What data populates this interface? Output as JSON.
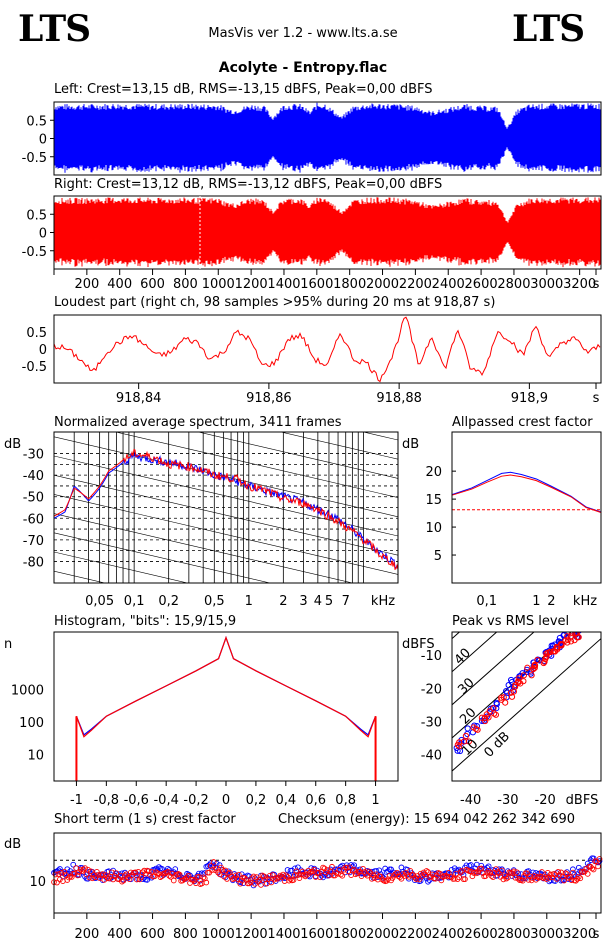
{
  "header": {
    "logo_left": "LTS",
    "logo_right": "LTS",
    "app_title": "MasVis ver 1.2 - www.lts.a.se",
    "file_title": "Acolyte - Entropy.flac"
  },
  "colors": {
    "left": "#0000ff",
    "right": "#ff0000"
  },
  "panels": {
    "left": "Left: Crest=13,15 dB, RMS=-13,15 dBFS, Peak=0,00 dBFS",
    "right": "Right: Crest=13,12 dB, RMS=-13,12 dBFS, Peak=0,00 dBFS",
    "loudest": "Loudest part (right ch, 98 samples >95% during 20 ms at 918,87 s)",
    "spectrum": "Normalized average spectrum, 3411 frames",
    "allpass": "Allpassed crest factor",
    "histogram": "Histogram, \"bits\": 15,9/15,9",
    "peakrms": "Peak vs RMS level",
    "shortcrest": "Short term (1 s) crest factor",
    "checksum": "Checksum (energy):  15 694 042 262 342 690"
  },
  "chart_data": [
    {
      "type": "area",
      "name": "left-waveform",
      "title": "Left: Crest=13,15 dB, RMS=-13,15 dBFS, Peak=0,00 dBFS",
      "ylim": [
        -1,
        1
      ],
      "ytick_labels": [
        "0.5",
        "0",
        "-0.5"
      ],
      "envelope_x": [
        0,
        200,
        400,
        600,
        800,
        900,
        1000,
        1050,
        1100,
        1150,
        1200,
        1280,
        1330,
        1400,
        1500,
        1560,
        1600,
        1650,
        1750,
        1820,
        1900,
        2000,
        2100,
        2200,
        2300,
        2400,
        2500,
        2600,
        2700,
        2760,
        2820,
        2900,
        3000,
        3100,
        3200,
        3300
      ],
      "envelope_y": [
        0.95,
        0.95,
        0.97,
        0.95,
        0.96,
        0.95,
        0.95,
        0.85,
        0.8,
        0.88,
        0.95,
        0.9,
        0.6,
        0.95,
        0.95,
        0.75,
        0.98,
        0.98,
        0.6,
        0.9,
        0.96,
        0.97,
        0.95,
        0.9,
        0.75,
        0.85,
        0.95,
        0.9,
        0.88,
        0.3,
        0.8,
        0.95,
        0.96,
        0.96,
        0.97,
        0.97
      ]
    },
    {
      "type": "area",
      "name": "right-waveform",
      "title": "Right: Crest=13,12 dB, RMS=-13,12 dBFS, Peak=0,00 dBFS",
      "ylim": [
        -1,
        1
      ],
      "ytick_labels": [
        "0.5",
        "0",
        "-0.5"
      ],
      "x_tick_labels": [
        "200",
        "400",
        "600",
        "800",
        "1000",
        "1200",
        "1400",
        "1600",
        "1800",
        "2000",
        "2200",
        "2400",
        "2600",
        "2800",
        "3000",
        "3200",
        "s"
      ],
      "envelope_x": [
        0,
        200,
        400,
        600,
        800,
        900,
        1000,
        1050,
        1100,
        1150,
        1200,
        1280,
        1330,
        1400,
        1500,
        1560,
        1600,
        1650,
        1750,
        1820,
        1900,
        2000,
        2100,
        2200,
        2300,
        2400,
        2500,
        2600,
        2700,
        2760,
        2820,
        2900,
        3000,
        3100,
        3200,
        3300
      ],
      "envelope_y": [
        0.95,
        0.95,
        0.97,
        0.95,
        0.96,
        0.95,
        0.95,
        0.85,
        0.8,
        0.88,
        0.95,
        0.9,
        0.6,
        0.95,
        0.95,
        0.75,
        0.98,
        0.98,
        0.6,
        0.9,
        0.96,
        0.97,
        0.95,
        0.9,
        0.75,
        0.85,
        0.95,
        0.9,
        0.88,
        0.3,
        0.8,
        0.95,
        0.96,
        0.96,
        0.97,
        0.97
      ]
    },
    {
      "type": "line",
      "name": "loudest-part",
      "title": "Loudest part (right ch, 98 samples >95% during 20 ms at 918,87 s)",
      "x_tick_labels": [
        "918,84",
        "918,86",
        "918,88",
        "918,9",
        "s"
      ],
      "xlim": [
        918.827,
        918.911
      ],
      "ylim": [
        -1,
        1
      ],
      "ytick_labels": [
        "0.5",
        "0",
        "-0.5"
      ],
      "x": [
        918.827,
        918.829,
        918.831,
        918.833,
        918.835,
        918.837,
        918.839,
        918.841,
        918.843,
        918.845,
        918.847,
        918.849,
        918.851,
        918.853,
        918.855,
        918.857,
        918.859,
        918.861,
        918.863,
        918.865,
        918.867,
        918.869,
        918.871,
        918.873,
        918.875,
        918.877,
        918.879,
        918.881,
        918.883,
        918.885,
        918.887,
        918.889,
        918.891,
        918.893,
        918.895,
        918.897,
        918.899,
        918.901,
        918.903,
        918.905,
        918.907,
        918.909,
        918.911
      ],
      "y": [
        0.1,
        0.0,
        -0.3,
        -0.7,
        -0.1,
        0.2,
        0.4,
        0.1,
        -0.2,
        -0.1,
        0.3,
        0.2,
        -0.3,
        -0.1,
        0.5,
        0.3,
        -0.5,
        -0.4,
        0.3,
        0.4,
        -0.3,
        -0.5,
        0.5,
        -0.3,
        -0.4,
        -0.9,
        -0.2,
        1.0,
        -0.5,
        0.4,
        -0.6,
        0.6,
        -0.6,
        -0.7,
        0.5,
        0.3,
        -0.2,
        0.7,
        -0.3,
        0.2,
        0.3,
        -0.1,
        0.1
      ]
    },
    {
      "type": "line",
      "name": "spectrum",
      "title": "Normalized average spectrum, 3411 frames",
      "ylabel": "dB",
      "ytick_labels": [
        "-30",
        "-40",
        "-50",
        "-60",
        "-70",
        "-80"
      ],
      "ylim": [
        -90,
        -20
      ],
      "x_tick_labels": [
        "0,05",
        "0,1",
        "0,2",
        "0,5",
        "1",
        "2",
        "3",
        "4",
        "5",
        "7",
        "kHz"
      ],
      "x": [
        0.02,
        0.025,
        0.03,
        0.04,
        0.05,
        0.06,
        0.08,
        0.1,
        0.15,
        0.2,
        0.3,
        0.5,
        0.8,
        1,
        1.5,
        2,
        3,
        4,
        5,
        7,
        10,
        14,
        20
      ],
      "series": [
        {
          "name": "L",
          "values": [
            -60,
            -57,
            -45,
            -52,
            -46,
            -39,
            -34,
            -31,
            -33,
            -34,
            -36,
            -40,
            -43,
            -45,
            -48,
            -50,
            -53,
            -56,
            -58,
            -63,
            -70,
            -76,
            -82
          ]
        },
        {
          "name": "R",
          "values": [
            -59,
            -56,
            -46,
            -51,
            -45,
            -38,
            -33,
            -30,
            -32,
            -35,
            -36,
            -40,
            -42,
            -45,
            -48,
            -51,
            -53,
            -56,
            -59,
            -64,
            -70,
            -77,
            -83
          ]
        }
      ]
    },
    {
      "type": "line",
      "name": "allpass-crest",
      "title": "Allpassed crest factor",
      "ylabel": "dB",
      "ytick_labels": [
        "20",
        "15",
        "10",
        "5"
      ],
      "ylim": [
        0,
        27
      ],
      "x_tick_labels": [
        "0,1",
        "1",
        "2",
        "kHz"
      ],
      "x": [
        0.02,
        0.05,
        0.1,
        0.2,
        0.3,
        0.5,
        1,
        2,
        5,
        10,
        20
      ],
      "series": [
        {
          "name": "L",
          "values": [
            15.8,
            17.0,
            18.3,
            19.6,
            19.8,
            19.4,
            18.6,
            17.3,
            15.5,
            13.6,
            12.7
          ]
        },
        {
          "name": "R",
          "values": [
            15.7,
            16.8,
            18.0,
            19.1,
            19.3,
            19.0,
            18.3,
            17.1,
            15.4,
            13.5,
            12.6
          ]
        }
      ],
      "reference_line": 13.1
    },
    {
      "type": "line",
      "name": "histogram",
      "title": "Histogram, \"bits\": 15,9/15,9",
      "ylabel": "n",
      "ytick_labels": [
        "1000",
        "100",
        "10"
      ],
      "yscale": "log",
      "x_tick_labels": [
        "-1",
        "-0,8",
        "-0,6",
        "-0,4",
        "-0,2",
        "0",
        "0,2",
        "0,4",
        "0,6",
        "0,8",
        "1"
      ],
      "xlim": [
        -1.15,
        1.15
      ],
      "x": [
        -1,
        -0.95,
        -0.9,
        -0.8,
        -0.6,
        -0.4,
        -0.2,
        -0.05,
        0,
        0.05,
        0.2,
        0.4,
        0.6,
        0.8,
        0.9,
        0.95,
        1
      ],
      "series": [
        {
          "name": "L",
          "values": [
            150,
            40,
            60,
            150,
            450,
            1300,
            3800,
            9000,
            40000,
            9000,
            3800,
            1300,
            450,
            150,
            60,
            40,
            150
          ]
        },
        {
          "name": "R",
          "values": [
            150,
            35,
            55,
            150,
            450,
            1300,
            3800,
            9000,
            40000,
            9000,
            3800,
            1300,
            450,
            150,
            55,
            35,
            150
          ]
        }
      ]
    },
    {
      "type": "scatter",
      "name": "peak-vs-rms",
      "title": "Peak vs RMS level",
      "ylabel": "dBFS",
      "xlabel": "dBFS",
      "ytick_labels": [
        "-10",
        "-20",
        "-30",
        "-40"
      ],
      "x_tick_labels": [
        "-40",
        "-30",
        "-20"
      ],
      "xlim": [
        -45,
        -5
      ],
      "ylim": [
        -48,
        -3
      ],
      "diagonal_labels": [
        "40",
        "30",
        "20",
        "10",
        "0 dB"
      ],
      "series": [
        {
          "name": "L",
          "x": [
            -44,
            -42,
            -40,
            -38,
            -36,
            -34,
            -32,
            -30,
            -29,
            -28,
            -26,
            -25,
            -24,
            -22,
            -21,
            -20,
            -19,
            -18,
            -17,
            -16,
            -15,
            -14,
            -13,
            -12,
            -11
          ],
          "y": [
            -38,
            -36,
            -33,
            -31,
            -29,
            -27,
            -25,
            -22,
            -20,
            -18,
            -17,
            -15,
            -14,
            -12,
            -12,
            -10,
            -9,
            -8,
            -7,
            -6,
            -5,
            -4,
            -4,
            -3.5,
            -3.5
          ]
        },
        {
          "name": "R",
          "x": [
            -43,
            -41,
            -39,
            -37,
            -35,
            -33,
            -31,
            -30,
            -28,
            -27,
            -26,
            -24,
            -23,
            -22,
            -21,
            -20,
            -19,
            -18,
            -17,
            -16,
            -15,
            -14,
            -13,
            -12,
            -11
          ],
          "y": [
            -37,
            -35,
            -33,
            -30,
            -28,
            -27,
            -24,
            -22,
            -20,
            -19,
            -17,
            -15,
            -14,
            -13,
            -12,
            -11,
            -10,
            -9,
            -8,
            -7,
            -6,
            -5,
            -4.5,
            -4,
            -3.5
          ]
        }
      ]
    },
    {
      "type": "scatter",
      "name": "short-term-crest",
      "title": "Short term (1 s) crest factor",
      "ylabel": "dB",
      "ytick_labels": [
        "10"
      ],
      "ylim": [
        0,
        25
      ],
      "x_tick_labels": [
        "200",
        "400",
        "600",
        "800",
        "1000",
        "1200",
        "1400",
        "1600",
        "1800",
        "2000",
        "2200",
        "2400",
        "2600",
        "2800",
        "3000",
        "3200",
        "s"
      ],
      "xlim": [
        0,
        3330
      ],
      "reference_line": 16.5,
      "series": [
        {
          "name": "L",
          "x": [
            20,
            120,
            250,
            380,
            520,
            640,
            780,
            900,
            950,
            1050,
            1200,
            1350,
            1500,
            1650,
            1800,
            1950,
            2100,
            2250,
            2400,
            2550,
            2700,
            2850,
            3000,
            3150,
            3300
          ],
          "y": [
            12,
            14,
            11,
            12,
            11,
            13,
            12,
            11,
            16,
            12,
            10,
            11,
            13,
            12,
            14,
            12,
            13,
            11,
            12,
            14,
            13,
            12,
            11,
            12,
            17
          ]
        },
        {
          "name": "R",
          "x": [
            40,
            150,
            270,
            400,
            540,
            660,
            800,
            920,
            970,
            1080,
            1230,
            1380,
            1530,
            1680,
            1830,
            1980,
            2130,
            2280,
            2430,
            2580,
            2730,
            2880,
            3030,
            3180,
            3310
          ],
          "y": [
            11,
            13,
            12,
            11,
            12,
            12,
            11,
            10,
            15,
            11,
            10,
            11,
            12,
            13,
            13,
            11,
            12,
            12,
            11,
            13,
            12,
            11,
            12,
            11,
            16
          ]
        }
      ]
    }
  ]
}
